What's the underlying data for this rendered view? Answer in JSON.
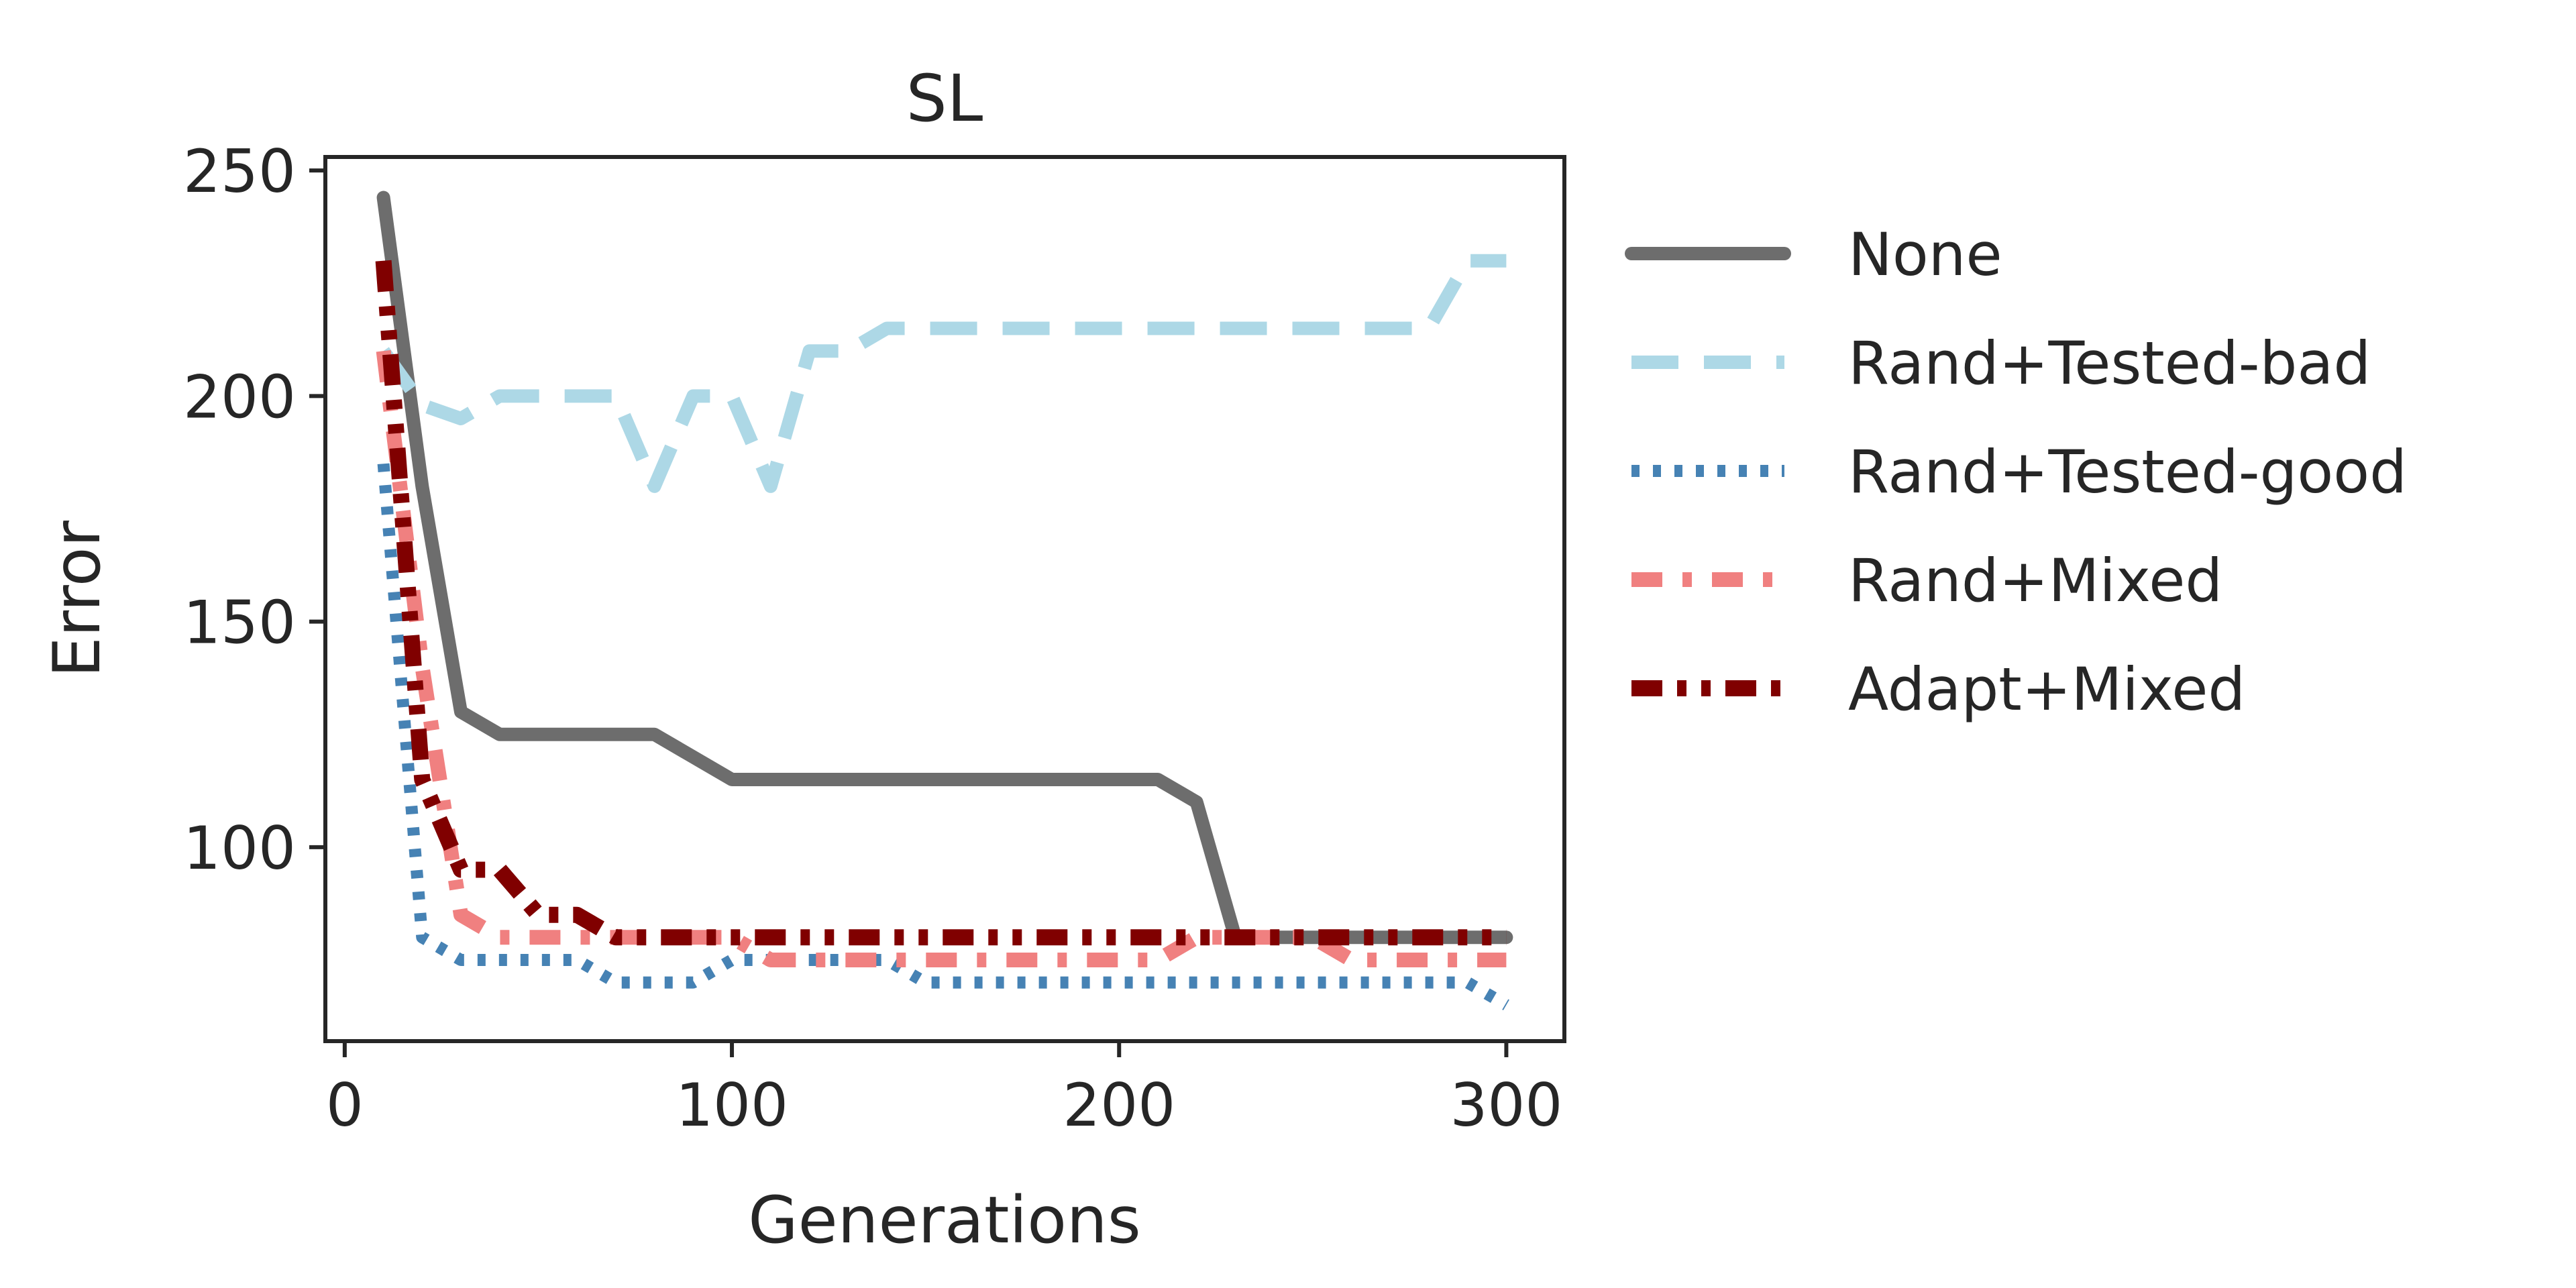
{
  "chart_data": {
    "type": "line",
    "title": "SL",
    "xlabel": "Generations",
    "ylabel": "Error",
    "xlim": [
      -5,
      315
    ],
    "ylim": [
      57,
      253
    ],
    "xticks": [
      0,
      100,
      200,
      300
    ],
    "yticks": [
      100,
      150,
      200,
      250
    ],
    "grid": false,
    "legend_position": "outside-right",
    "series": [
      {
        "name": "None",
        "color": "#6d6d6d",
        "dash": "solid",
        "x": [
          10,
          20,
          30,
          40,
          50,
          60,
          70,
          80,
          90,
          100,
          110,
          120,
          130,
          140,
          150,
          160,
          170,
          180,
          190,
          200,
          210,
          220,
          230,
          240,
          250,
          260,
          270,
          280,
          290,
          300
        ],
        "y": [
          244,
          180,
          130,
          125,
          125,
          125,
          125,
          125,
          120,
          115,
          115,
          115,
          115,
          115,
          115,
          115,
          115,
          115,
          115,
          115,
          115,
          110,
          80,
          80,
          80,
          80,
          80,
          80,
          80,
          80
        ]
      },
      {
        "name": "Rand+Tested-bad",
        "color": "#add8e6",
        "dash": "dashed",
        "x": [
          10,
          20,
          30,
          40,
          50,
          60,
          70,
          80,
          90,
          100,
          110,
          120,
          130,
          140,
          150,
          160,
          170,
          180,
          190,
          200,
          210,
          220,
          230,
          240,
          250,
          260,
          270,
          280,
          290,
          300
        ],
        "y": [
          210,
          198,
          195,
          200,
          200,
          200,
          200,
          180,
          200,
          200,
          180,
          210,
          210,
          215,
          215,
          215,
          215,
          215,
          215,
          215,
          215,
          215,
          215,
          215,
          215,
          215,
          215,
          215,
          230,
          230
        ]
      },
      {
        "name": "Rand+Tested-good",
        "color": "#4682b4",
        "dash": "dotted",
        "x": [
          10,
          20,
          30,
          40,
          50,
          60,
          70,
          80,
          90,
          100,
          110,
          120,
          130,
          140,
          150,
          160,
          170,
          180,
          190,
          200,
          210,
          220,
          230,
          240,
          250,
          260,
          270,
          280,
          290,
          300
        ],
        "y": [
          185,
          80,
          75,
          75,
          75,
          75,
          70,
          70,
          70,
          75,
          75,
          75,
          75,
          75,
          70,
          70,
          70,
          70,
          70,
          70,
          70,
          70,
          70,
          70,
          70,
          70,
          70,
          70,
          70,
          65
        ]
      },
      {
        "name": "Rand+Mixed",
        "color": "#f08080",
        "dash": "dashdot",
        "x": [
          10,
          20,
          30,
          40,
          50,
          60,
          70,
          80,
          90,
          100,
          110,
          120,
          130,
          140,
          150,
          160,
          170,
          180,
          190,
          200,
          210,
          220,
          230,
          240,
          250,
          260,
          270,
          280,
          290,
          300
        ],
        "y": [
          210,
          140,
          85,
          80,
          80,
          80,
          80,
          80,
          80,
          80,
          75,
          75,
          75,
          75,
          75,
          75,
          75,
          75,
          75,
          75,
          75,
          80,
          80,
          80,
          80,
          75,
          75,
          75,
          75,
          75
        ]
      },
      {
        "name": "Adapt+Mixed",
        "color": "#800000",
        "dash": "dashdotdot",
        "x": [
          10,
          20,
          30,
          40,
          50,
          60,
          70,
          80,
          90,
          100,
          110,
          120,
          130,
          140,
          150,
          160,
          170,
          180,
          190,
          200,
          210,
          220,
          230,
          240,
          250,
          260,
          270,
          280,
          290,
          300
        ],
        "y": [
          230,
          115,
          95,
          95,
          85,
          85,
          80,
          80,
          80,
          80,
          80,
          80,
          80,
          80,
          80,
          80,
          80,
          80,
          80,
          80,
          80,
          80,
          80,
          80,
          80,
          80,
          80,
          80,
          80,
          80
        ]
      }
    ]
  }
}
